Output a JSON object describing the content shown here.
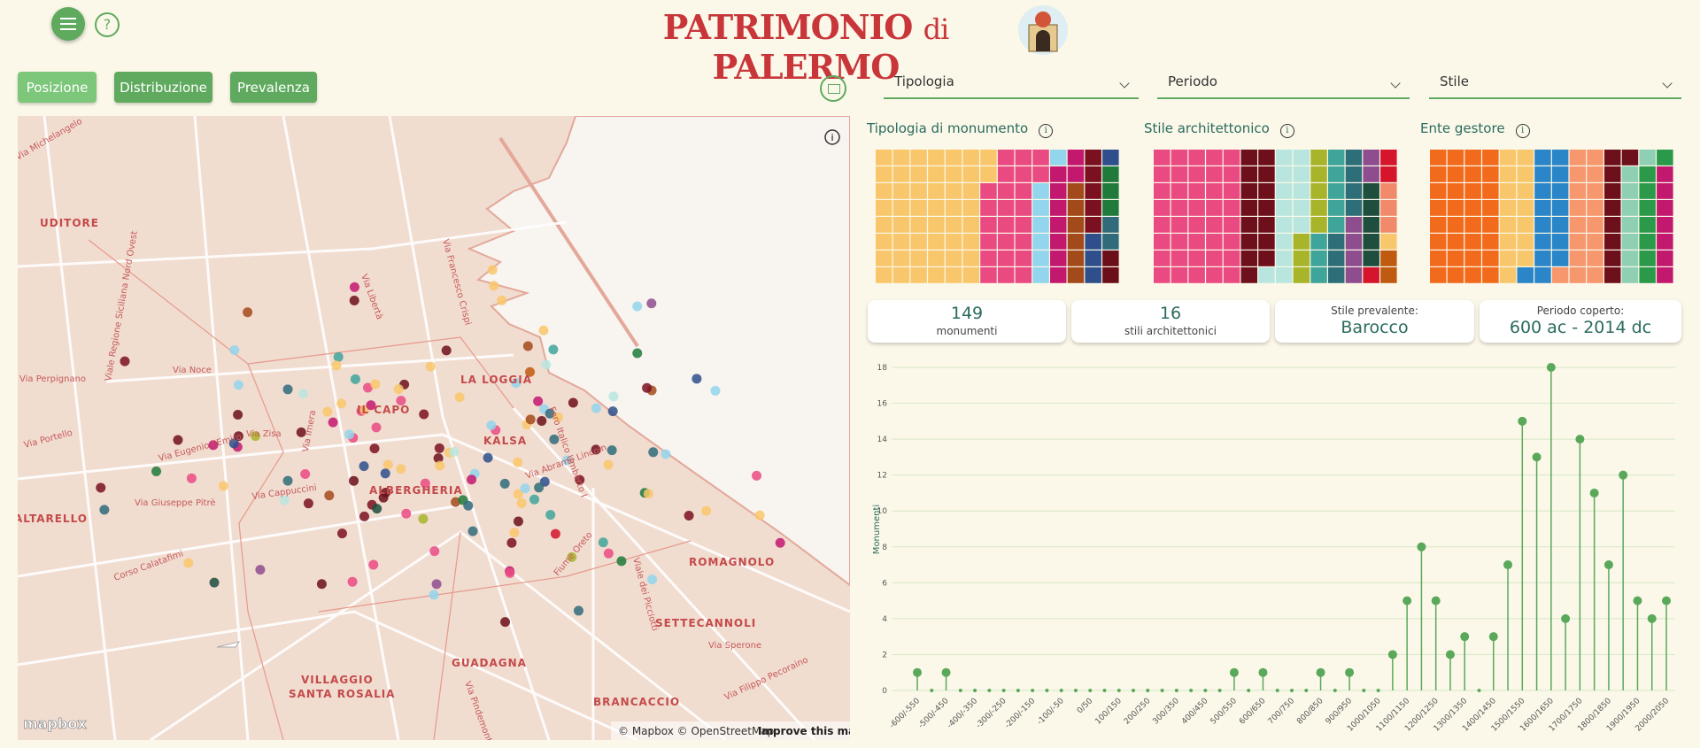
{
  "header": {
    "title_a": "PATRIMONIO",
    "title_b": "di",
    "title_c": "PALERMO",
    "help": "?"
  },
  "tabs": [
    "Posizione",
    "Distribuzione",
    "Prevalenza"
  ],
  "filters": [
    "Tipologia",
    "Periodo",
    "Stile"
  ],
  "map": {
    "places": [
      "UDITORE",
      "IL CAPO",
      "LA LOGGIA",
      "KALSA",
      "ALBERGHERIA",
      "ROMAGNOLO",
      "SETTECANNOLI",
      "GUADAGNA",
      "VILLAGGIO",
      "SANTA ROSALIA",
      "BRANCACCIO",
      "ALTARELLO"
    ],
    "streets": [
      "Via Michelangelo",
      "Viale Regione Siciliana Nord Ovest",
      "Via Noce",
      "Via Perpignano",
      "Via Portello",
      "Via Eugenio l'Emiro",
      "Via Giuseppe Pitrè",
      "Via Cappuccini",
      "Via Zisa",
      "Via Imera",
      "Via Libertà",
      "Via Francesco Crispi",
      "Foro Italico Umberto I",
      "Via Abramo Lincoln",
      "Fiume Oreto",
      "Viale dei Picciotti",
      "Corso Calatafimi",
      "Via Pindemonte",
      "Via Sperone",
      "Via Filippo Pecoraino"
    ],
    "attribution": "© Mapbox © OpenStreetMap",
    "improve": "Improve this map",
    "logo": "mapbox"
  },
  "waffles": [
    {
      "title": "Tipologia di monumento",
      "values": [
        50,
        24,
        7,
        9,
        6,
        5,
        4,
        3,
        2,
        2
      ],
      "colors": [
        "#f9c76b",
        "#ea4a82",
        "#93d5ec",
        "#c2196f",
        "#a34a1a",
        "#7a1020",
        "#2e4f8c",
        "#1f7a3c",
        "#2f6b7a",
        "#6b0f1a"
      ]
    },
    {
      "title": "Stile architettonico",
      "values": [
        40,
        15,
        14,
        8,
        8,
        7,
        6,
        5,
        3,
        3,
        1,
        2
      ],
      "colors": [
        "#ea4a82",
        "#6e0f1c",
        "#b8e6de",
        "#a8b52a",
        "#3fa59a",
        "#2e6e78",
        "#8e4d8e",
        "#1d4e3e",
        "#d4152b",
        "#f08a6a",
        "#f9c76b",
        "#c05a10"
      ]
    },
    {
      "title": "Ente gestore",
      "values": [
        32,
        15,
        16,
        17,
        9,
        8,
        8,
        7
      ],
      "colors": [
        "#f26b1d",
        "#f9c76b",
        "#2a86c8",
        "#f7976e",
        "#6e0f1c",
        "#8fd0b4",
        "#2a9a4a",
        "#c2196f"
      ]
    }
  ],
  "kpis": [
    {
      "value": "149",
      "caption": "monumenti"
    },
    {
      "value": "16",
      "caption": "stili architettonici"
    },
    {
      "caption": "Stile prevalente:",
      "value": "Barocco"
    },
    {
      "caption": "Periodo coperto:",
      "value": "600 ac - 2014 dc"
    }
  ],
  "chart_data": {
    "type": "lollipop",
    "y_label": "Monumenti",
    "color": "#5aa85a",
    "categories": [
      "-600/-550",
      null,
      "-500/-450",
      null,
      "-400/-350",
      null,
      "-300/-250",
      null,
      "-200/-150",
      null,
      "-100/-50",
      null,
      "0/50",
      null,
      "100/150",
      null,
      "200/250",
      null,
      "300/350",
      null,
      "400/450",
      null,
      "500/550",
      null,
      "600/650",
      null,
      "700/750",
      null,
      "800/850",
      null,
      "900/950",
      null,
      "1000/1050",
      null,
      "1100/1150",
      null,
      "1200/1250",
      null,
      "1300/1350",
      null,
      "1400/1450",
      null,
      "1500/1550",
      null,
      "1600/1650",
      null,
      "1700/1750",
      null,
      "1800/1850",
      null,
      "1900/1950",
      null,
      "2000/2050"
    ],
    "values": [
      1,
      0,
      1,
      0,
      0,
      0,
      0,
      0,
      0,
      0,
      0,
      0,
      0,
      0,
      0,
      0,
      0,
      0,
      0,
      0,
      0,
      0,
      1,
      0,
      1,
      0,
      0,
      0,
      1,
      0,
      1,
      0,
      0,
      2,
      5,
      8,
      5,
      2,
      3,
      0,
      3,
      7,
      15,
      13,
      18,
      4,
      14,
      11,
      7,
      12,
      5,
      4,
      5
    ],
    "ylim": [
      0,
      18
    ],
    "yticks": [
      0,
      2,
      4,
      6,
      8,
      10,
      12,
      14,
      16,
      18
    ],
    "grid": true
  }
}
